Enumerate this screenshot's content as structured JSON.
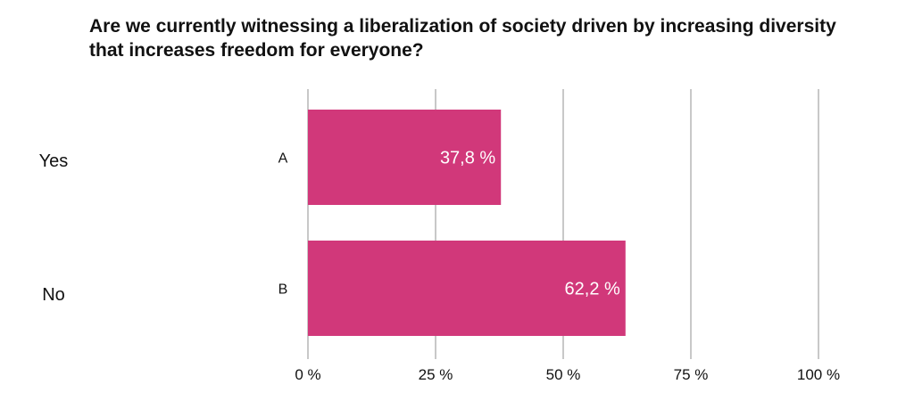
{
  "title": "Are we currently witnessing a liberalization of society driven by increasing diversity that increases freedom for everyone?",
  "answers": [
    "Yes",
    "No"
  ],
  "chart_data": {
    "type": "bar",
    "orientation": "horizontal",
    "categories": [
      "A",
      "B"
    ],
    "values": [
      37.8,
      62.2
    ],
    "value_labels": [
      "37,8 %",
      "62,2 %"
    ],
    "x_ticks": [
      0,
      25,
      50,
      75,
      100
    ],
    "x_tick_labels": [
      "0 %",
      "25 %",
      "50 %",
      "75 %",
      "100 %"
    ],
    "xlim": [
      0,
      100
    ],
    "grid": true,
    "bar_color": "#d1387a",
    "grid_color": "#c8c8c8"
  }
}
